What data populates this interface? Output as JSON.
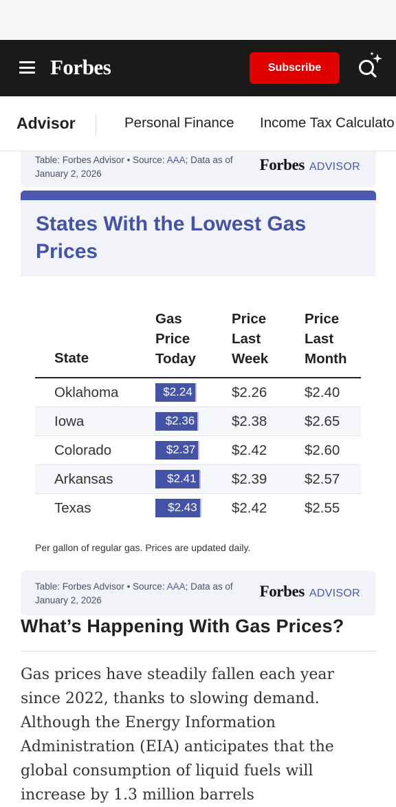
{
  "header": {
    "logo": "Forbes",
    "subscribe_label": "Subscribe"
  },
  "subnav": {
    "brand": "Advisor",
    "links": [
      "Personal Finance",
      "Income Tax Calculato"
    ]
  },
  "source_box": {
    "prefix": "Table: Forbes Advisor • Source: ",
    "link": "AAA",
    "suffix": "; Data as of January 2, 2026",
    "logo_forbes": "Forbes",
    "logo_advisor": "ADVISOR"
  },
  "table": {
    "title": "States With the Lowest Gas Prices",
    "headers": {
      "state": "State",
      "today": "Gas Price Today",
      "week": "Price Last Week",
      "month": "Price Last Month"
    },
    "rows": [
      {
        "state": "Oklahoma",
        "today": "$2.24",
        "week": "$2.26",
        "month": "$2.40",
        "bar_fill": 0.52
      },
      {
        "state": "Iowa",
        "today": "$2.36",
        "week": "$2.38",
        "month": "$2.65",
        "bar_fill": 0.55
      },
      {
        "state": "Colorado",
        "today": "$2.37",
        "week": "$2.42",
        "month": "$2.60",
        "bar_fill": 0.56
      },
      {
        "state": "Arkansas",
        "today": "$2.41",
        "week": "$2.39",
        "month": "$2.57",
        "bar_fill": 0.57
      },
      {
        "state": "Texas",
        "today": "$2.43",
        "week": "$2.42",
        "month": "$2.55",
        "bar_fill": 0.58
      }
    ],
    "footnote": "Per gallon of regular gas. Prices are updated daily."
  },
  "article": {
    "heading": "What’s Happening With Gas Prices?",
    "body": "Gas prices have steadily fallen each year since 2022, thanks to slowing demand. Although the Energy Information Administration (EIA) anticipates that the global consumption of liquid fuels will increase by 1.3 million barrels"
  },
  "colors": {
    "accent": "#4553a6",
    "subscribe": "#e00000",
    "header_bg": "#1a1a1a",
    "panel_bg": "#f1f3f8"
  }
}
